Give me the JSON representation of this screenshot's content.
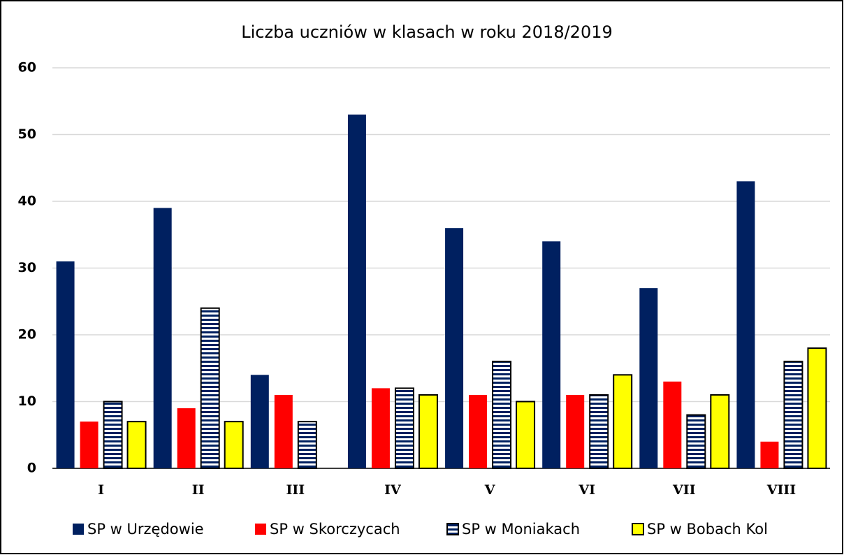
{
  "chart_data": {
    "type": "bar",
    "title": "Liczba uczniów w klasach w roku 2018/2019",
    "categories": [
      "I",
      "II",
      "III",
      "IV",
      "V",
      "VI",
      "VII",
      "VIII"
    ],
    "series": [
      {
        "name": "SP w Urzędowie",
        "color": "#002060",
        "values": [
          31,
          39,
          14,
          53,
          36,
          34,
          27,
          43
        ]
      },
      {
        "name": "SP w Skorczycach",
        "color": "#ff0000",
        "values": [
          7,
          9,
          11,
          12,
          11,
          11,
          13,
          4
        ]
      },
      {
        "name": "SP w Moniakach",
        "color": "#002060",
        "pattern": "horizontal-stripes",
        "values": [
          10,
          24,
          7,
          12,
          16,
          11,
          8,
          16
        ]
      },
      {
        "name": "SP w Bobach Kol",
        "color": "#ffff00",
        "outline": true,
        "values": [
          7,
          7,
          0,
          11,
          10,
          14,
          11,
          18
        ]
      }
    ],
    "ylim": [
      0,
      60
    ],
    "yticks": [
      0,
      10,
      20,
      30,
      40,
      50,
      60
    ],
    "grid": true,
    "legend": "bottom"
  }
}
